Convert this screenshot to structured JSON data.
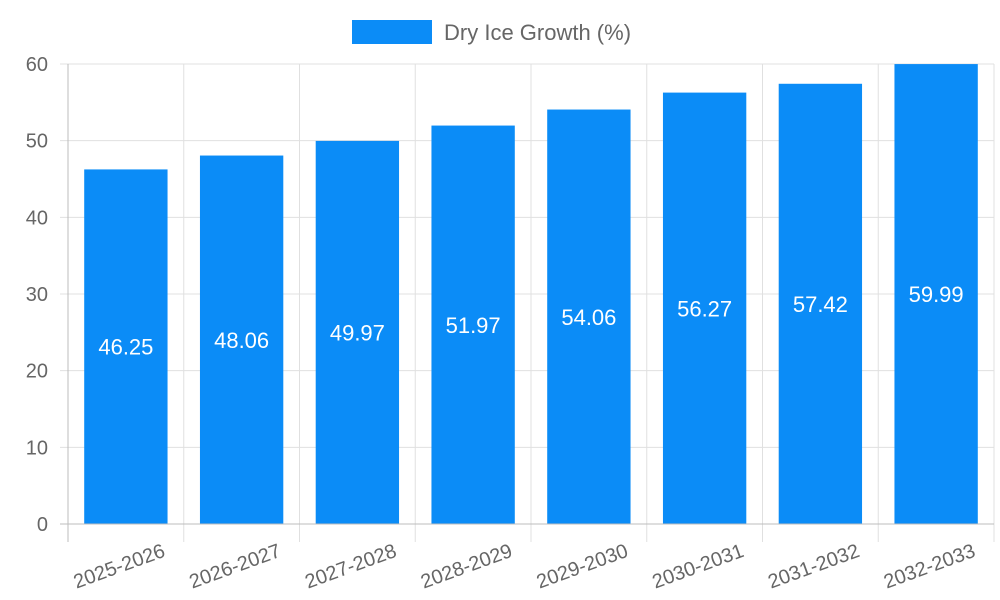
{
  "chart_data": {
    "type": "bar",
    "title": "",
    "xlabel": "",
    "ylabel": "",
    "categories": [
      "2025-2026",
      "2026-2027",
      "2027-2028",
      "2028-2029",
      "2029-2030",
      "2030-2031",
      "2031-2032",
      "2032-2033"
    ],
    "series": [
      {
        "name": "Dry Ice Growth (%)",
        "color": "#0b8cf7",
        "values": [
          46.25,
          48.06,
          49.97,
          51.97,
          54.06,
          56.27,
          57.42,
          59.99
        ]
      }
    ],
    "data_labels": [
      "46.25",
      "48.06",
      "49.97",
      "51.97",
      "54.06",
      "56.27",
      "57.42",
      "59.99"
    ],
    "ylim": [
      0,
      60
    ],
    "yticks": [
      0,
      10,
      20,
      30,
      40,
      50,
      60
    ],
    "ytick_labels": [
      "0",
      "10",
      "20",
      "30",
      "40",
      "50",
      "60"
    ],
    "grid": true,
    "legend_position": "top-center",
    "x_tick_rotation_deg": -20
  }
}
